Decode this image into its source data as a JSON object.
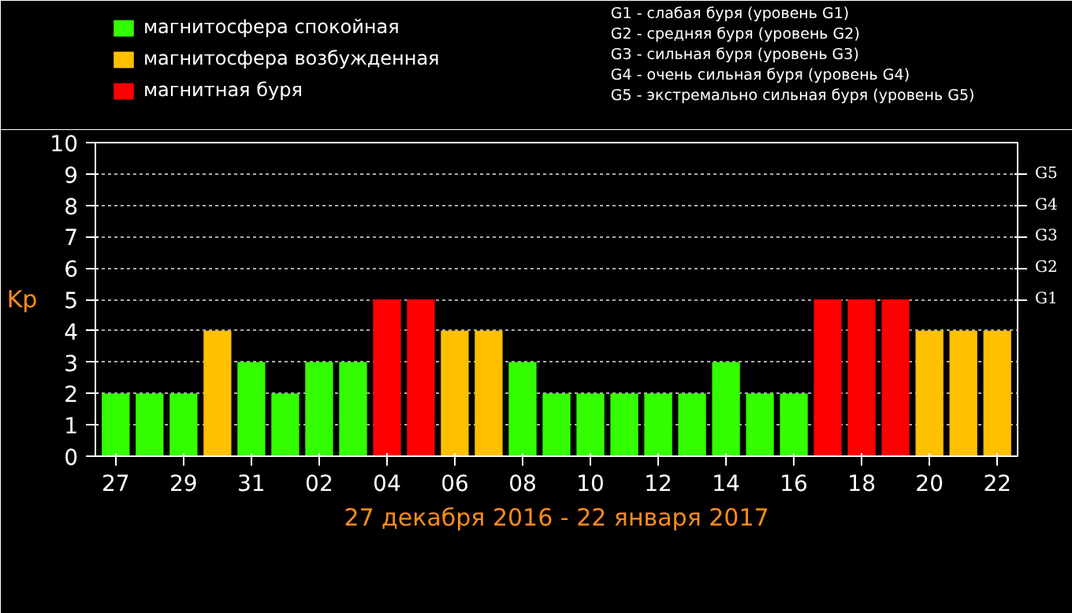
{
  "chart_data": {
    "type": "bar",
    "xlabel": "27 декабря 2016 - 22 января 2017",
    "ylabel": "Kp",
    "categories": [
      "27",
      null,
      "29",
      null,
      "31",
      null,
      "02",
      null,
      "04",
      null,
      "06",
      null,
      "08",
      null,
      "10",
      null,
      "12",
      null,
      "14",
      null,
      "16",
      null,
      "18",
      null,
      "20",
      null,
      "22"
    ],
    "series": [
      {
        "name": "магнитосфера спокойная",
        "color": "#33ff00",
        "values": [
          2,
          2,
          2,
          null,
          3,
          2,
          3,
          3,
          null,
          null,
          null,
          null,
          3,
          2,
          2,
          2,
          2,
          2,
          3,
          2,
          2,
          null,
          null,
          null,
          null,
          null,
          null
        ]
      },
      {
        "name": "магнитосфера возбужденная",
        "color": "#ffc000",
        "values": [
          null,
          null,
          null,
          4,
          null,
          null,
          null,
          null,
          null,
          null,
          4,
          4,
          null,
          null,
          null,
          null,
          null,
          null,
          null,
          null,
          null,
          null,
          null,
          null,
          4,
          4,
          4
        ]
      },
      {
        "name": "магнитная буря",
        "color": "#ff0000",
        "values": [
          null,
          null,
          null,
          null,
          null,
          null,
          null,
          null,
          5,
          5,
          null,
          null,
          null,
          null,
          null,
          null,
          null,
          null,
          null,
          null,
          null,
          5,
          5,
          5,
          null,
          null,
          null
        ]
      }
    ],
    "ylim": [
      0,
      10
    ],
    "yticks": [
      0,
      1,
      2,
      3,
      4,
      5,
      6,
      7,
      8,
      9,
      10
    ],
    "y2_categories": [
      null,
      "G5",
      "G4",
      "G3",
      "G2",
      "G1",
      null,
      null,
      null,
      null,
      null
    ],
    "grid": "y",
    "legend": "top left",
    "annotations": [
      "G1 - слабая буря (уровень G1)",
      "G2 - средняя буря (уровень G2)",
      "G3 - сильная буря (уровень G3)",
      "G4 - очень сильная буря (уровень G4)",
      "G5 - экстремально сильная буря (уровень G5)"
    ]
  }
}
